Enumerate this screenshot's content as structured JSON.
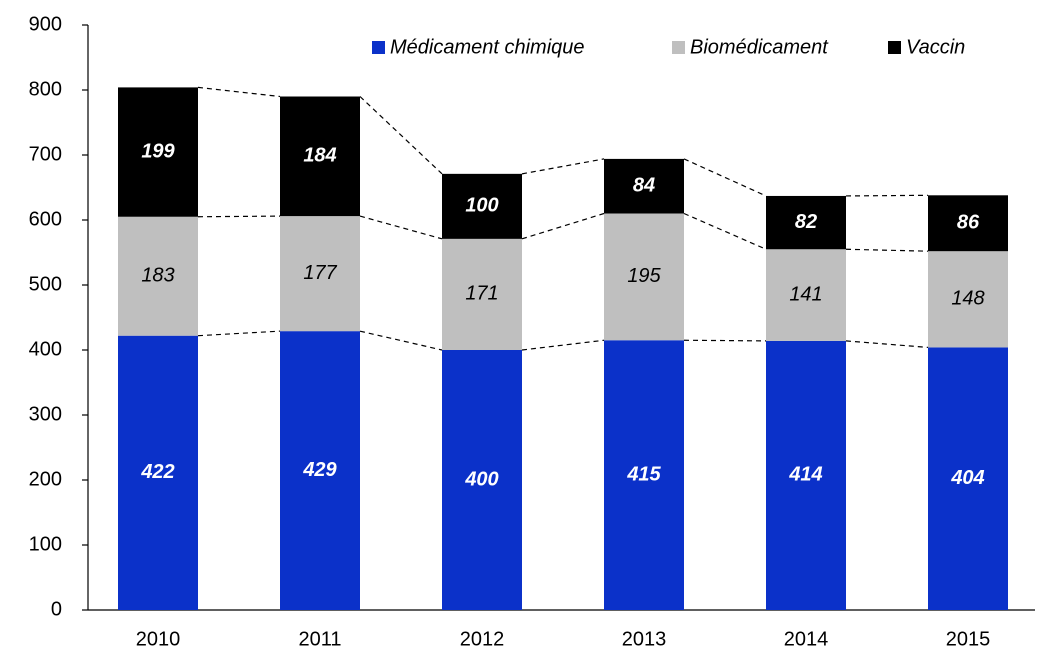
{
  "chart_data": {
    "type": "stacked_bar",
    "categories": [
      "2010",
      "2011",
      "2012",
      "2013",
      "2014",
      "2015"
    ],
    "series": [
      {
        "name": "Médicament chimique",
        "color": "#0b31c9",
        "values": [
          422,
          429,
          400,
          415,
          414,
          404
        ]
      },
      {
        "name": "Biomédicament",
        "color": "#bfbfbf",
        "values": [
          183,
          177,
          171,
          195,
          141,
          148
        ]
      },
      {
        "name": "Vaccin",
        "color": "#000000",
        "values": [
          199,
          184,
          100,
          84,
          82,
          86
        ]
      }
    ],
    "ylim": [
      0,
      900
    ],
    "yticks": [
      0,
      100,
      200,
      300,
      400,
      500,
      600,
      700,
      800,
      900
    ],
    "grid": false,
    "legend": "top"
  }
}
